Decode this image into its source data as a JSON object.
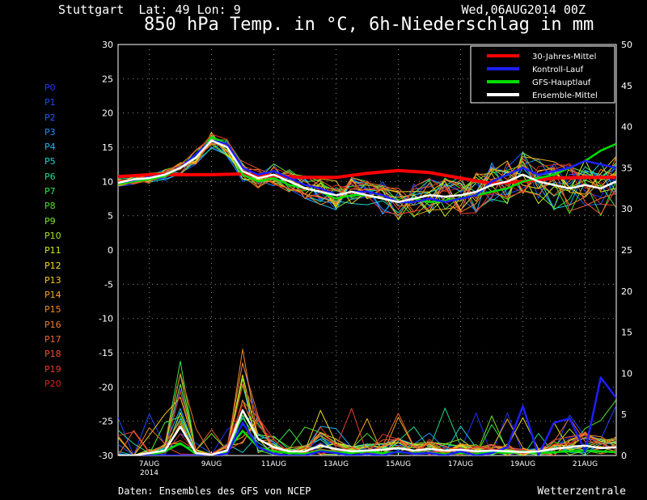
{
  "header": {
    "location": "Stuttgart  Lat: 49 Lon: 9",
    "run": "Wed,06AUG2014 00Z",
    "title": "850 hPa Temp. in °C, 6h-Niederschlag in mm"
  },
  "footer": {
    "source": "Daten: Ensembles des GFS von NCEP",
    "brand": "Wetterzentrale"
  },
  "members": [
    {
      "label": "P0",
      "color": "#1e32ff"
    },
    {
      "label": "P1",
      "color": "#1e46ff"
    },
    {
      "label": "P2",
      "color": "#1e5aff"
    },
    {
      "label": "P3",
      "color": "#1e8cff"
    },
    {
      "label": "P4",
      "color": "#1eb4ff"
    },
    {
      "label": "P5",
      "color": "#1ed2d2"
    },
    {
      "label": "P6",
      "color": "#1edc8c"
    },
    {
      "label": "P7",
      "color": "#32e650"
    },
    {
      "label": "P8",
      "color": "#46e632"
    },
    {
      "label": "P9",
      "color": "#78e61e"
    },
    {
      "label": "P10",
      "color": "#a0e61e"
    },
    {
      "label": "P11",
      "color": "#d2e61e"
    },
    {
      "label": "P12",
      "color": "#f0dc1e"
    },
    {
      "label": "P13",
      "color": "#f0c81e"
    },
    {
      "label": "P14",
      "color": "#f0aa1e"
    },
    {
      "label": "P15",
      "color": "#f08c1e"
    },
    {
      "label": "P16",
      "color": "#f07828"
    },
    {
      "label": "P17",
      "color": "#f06432"
    },
    {
      "label": "P18",
      "color": "#f05032"
    },
    {
      "label": "P19",
      "color": "#e63c28"
    },
    {
      "label": "P20",
      "color": "#d2281e"
    }
  ],
  "chart_data": {
    "type": "line",
    "x_unit": "days after 06AUG2014 00Z",
    "xlim": [
      0,
      16
    ],
    "x_ticks": [
      {
        "x": 1,
        "label": "7AUG",
        "sub": "2014"
      },
      {
        "x": 3,
        "label": "9AUG",
        "sub": ""
      },
      {
        "x": 5,
        "label": "11AUG",
        "sub": ""
      },
      {
        "x": 7,
        "label": "13AUG",
        "sub": ""
      },
      {
        "x": 9,
        "label": "15AUG",
        "sub": ""
      },
      {
        "x": 11,
        "label": "17AUG",
        "sub": ""
      },
      {
        "x": 13,
        "label": "19AUG",
        "sub": ""
      },
      {
        "x": 15,
        "label": "21AUG",
        "sub": ""
      }
    ],
    "y_left": {
      "min": -30,
      "max": 30,
      "ticks": [
        30,
        25,
        20,
        15,
        10,
        5,
        0,
        -5,
        -10,
        -15,
        -20,
        -25,
        -30
      ]
    },
    "y_right": {
      "min": 0,
      "max": 50,
      "ticks": [
        50,
        45,
        40,
        35,
        30,
        25,
        20,
        15,
        10,
        5,
        0
      ]
    },
    "grid": true,
    "legend": {
      "position": "top-right",
      "items": [
        {
          "label": "30-Jahres-Mittel",
          "color": "#ff0000"
        },
        {
          "label": "Kontroll-Lauf",
          "color": "#1e1eff"
        },
        {
          "label": "GFS-Hauptlauf",
          "color": "#00dc00"
        },
        {
          "label": "Ensemble-Mittel",
          "color": "#ffffff"
        }
      ]
    },
    "temp_climate": {
      "x": [
        0,
        1,
        2,
        3,
        4,
        5,
        6,
        7,
        8,
        9,
        10,
        11,
        12,
        13,
        14,
        15,
        16
      ],
      "y": [
        10.7,
        11,
        11,
        11,
        11.1,
        10.8,
        10.6,
        10.6,
        11.2,
        11.6,
        11.3,
        10.5,
        9.7,
        10,
        10.5,
        10.6,
        10.6
      ]
    },
    "temp_mean": {
      "x": [
        0,
        0.5,
        1,
        1.5,
        2,
        2.5,
        3,
        3.5,
        4,
        4.5,
        5,
        5.5,
        6,
        6.5,
        7,
        7.5,
        8,
        8.5,
        9,
        9.5,
        10,
        10.5,
        11,
        11.5,
        12,
        12.5,
        13,
        13.5,
        14,
        14.5,
        15,
        15.5,
        16
      ],
      "y": [
        9.8,
        10.3,
        10.5,
        11,
        12,
        13.5,
        16,
        15,
        11.5,
        10.5,
        11,
        10,
        9,
        8.5,
        8,
        8.5,
        8,
        7.5,
        7,
        7.5,
        8,
        7.8,
        8,
        8.5,
        9.5,
        10,
        11,
        10,
        9.5,
        9,
        9.5,
        9,
        10
      ]
    },
    "temp_control": {
      "x": [
        0,
        0.5,
        1,
        1.5,
        2,
        2.5,
        3,
        3.5,
        4,
        4.5,
        5,
        5.5,
        6,
        6.5,
        7,
        7.5,
        8,
        8.5,
        9,
        9.5,
        10,
        10.5,
        11,
        11.5,
        12,
        12.5,
        13,
        13.5,
        14,
        14.5,
        15,
        15.5,
        16
      ],
      "y": [
        9.8,
        10.2,
        10.6,
        11,
        12,
        14,
        16,
        15.5,
        12,
        11,
        11.5,
        10.5,
        9.5,
        9,
        8,
        8.5,
        8.5,
        8,
        7,
        7,
        7.5,
        7,
        7.5,
        8,
        10,
        11,
        12,
        11,
        11.5,
        12,
        13,
        12.5,
        12
      ]
    },
    "temp_operational": {
      "x": [
        0,
        0.5,
        1,
        1.5,
        2,
        2.5,
        3,
        3.5,
        4,
        4.5,
        5,
        5.5,
        6,
        6.5,
        7,
        7.5,
        8,
        8.5,
        9,
        9.5,
        10,
        10.5,
        11,
        11.5,
        12,
        12.5,
        13,
        13.5,
        14,
        14.5,
        15,
        15.5,
        16
      ],
      "y": [
        9.6,
        10,
        10.3,
        10.8,
        12,
        13.5,
        16.5,
        15.5,
        11,
        10,
        10.5,
        9.5,
        9,
        8.5,
        7.5,
        8,
        8,
        7.5,
        7,
        7.5,
        7,
        7.2,
        7.5,
        8,
        8.5,
        9,
        10,
        10.5,
        11,
        12,
        13,
        14.5,
        15.5
      ]
    },
    "precip_mean": {
      "x": [
        0,
        0.5,
        1,
        1.5,
        2,
        2.5,
        3,
        3.5,
        4,
        4.5,
        5,
        5.5,
        6,
        6.5,
        7,
        7.5,
        8,
        8.5,
        9,
        9.5,
        10,
        10.5,
        11,
        11.5,
        12,
        12.5,
        13,
        13.5,
        14,
        14.5,
        15,
        15.5,
        16
      ],
      "y": [
        0,
        0,
        0.3,
        0.6,
        3.5,
        0.3,
        0.1,
        0.6,
        5.5,
        2,
        1,
        0.5,
        0.5,
        1.2,
        0.8,
        0.5,
        0.6,
        0.7,
        0.9,
        0.6,
        0.8,
        0.6,
        0.7,
        0.5,
        0.6,
        0.5,
        0.4,
        0.5,
        0.8,
        1,
        1.2,
        0.9,
        1
      ]
    },
    "precip_control": {
      "x": [
        0,
        0.5,
        1,
        1.5,
        2,
        2.5,
        3,
        3.5,
        4,
        4.5,
        5,
        5.5,
        6,
        6.5,
        7,
        7.5,
        8,
        8.5,
        9,
        9.5,
        10,
        10.5,
        11,
        11.5,
        12,
        12.5,
        13,
        13.5,
        14,
        14.5,
        15,
        15.5,
        16
      ],
      "y": [
        0,
        0,
        0,
        0,
        0,
        0,
        0,
        0.2,
        4,
        1,
        0.2,
        0,
        0,
        0.5,
        0.3,
        0,
        0.2,
        0,
        0.5,
        0.2,
        0.3,
        0,
        0.5,
        0,
        0.3,
        1,
        6,
        0,
        4,
        4.5,
        0.5,
        9.5,
        7
      ]
    },
    "precip_operational": {
      "x": [
        0,
        0.5,
        1,
        1.5,
        2,
        2.5,
        3,
        3.5,
        4,
        4.5,
        5,
        5.5,
        6,
        6.5,
        7,
        7.5,
        8,
        8.5,
        9,
        9.5,
        10,
        10.5,
        11,
        11.5,
        12,
        12.5,
        13,
        13.5,
        14,
        14.5,
        15,
        15.5,
        16
      ],
      "y": [
        0,
        0,
        0,
        0.5,
        1.5,
        0.2,
        0,
        0.5,
        3,
        1,
        0.5,
        0.3,
        0.2,
        0.6,
        0.4,
        0.3,
        0.5,
        0.3,
        0.4,
        0.3,
        0.3,
        0.2,
        0.3,
        0.2,
        0.4,
        0.3,
        0.5,
        0.3,
        0.4,
        0.5,
        0.6,
        0.5,
        0.4
      ]
    }
  }
}
